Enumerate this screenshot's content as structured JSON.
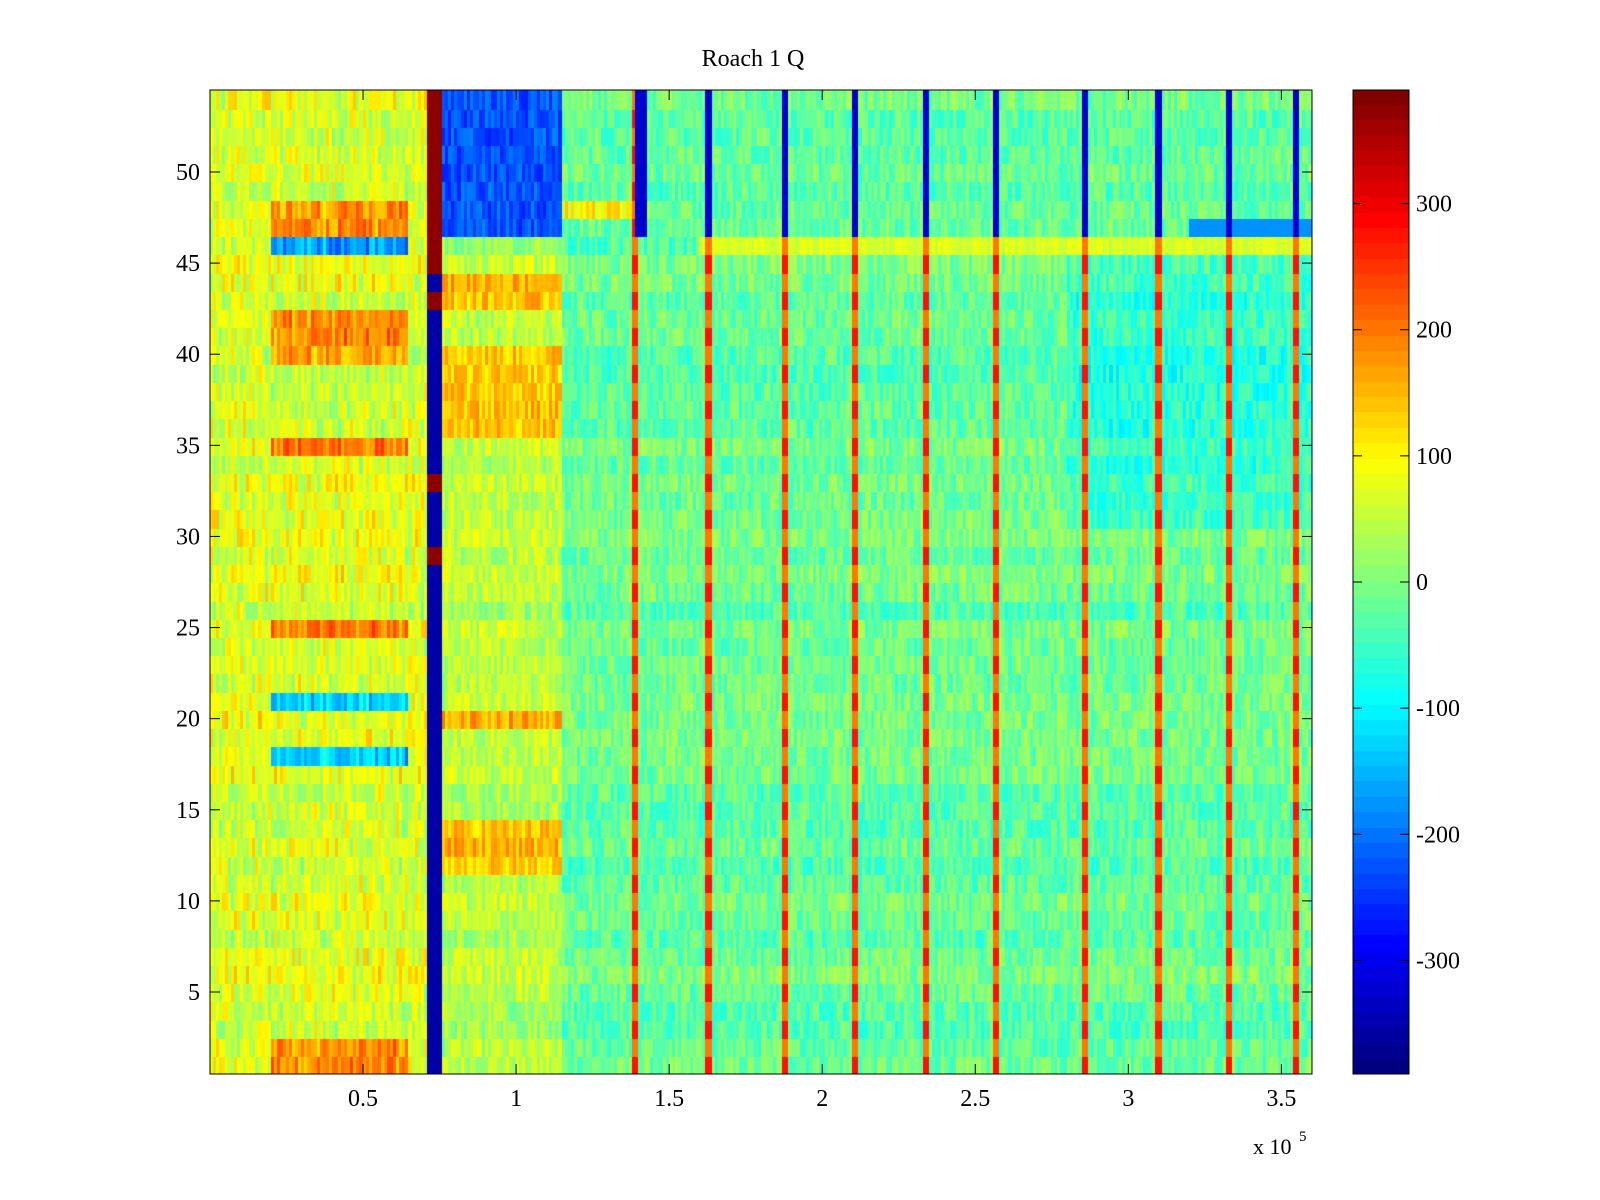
{
  "chart_data": {
    "type": "heatmap",
    "title": "Roach 1 Q",
    "xlabel": "",
    "ylabel": "",
    "x_exponent_label": {
      "base": "x 10",
      "power": "5"
    },
    "xlim": [
      0,
      3.6
    ],
    "ylim": [
      0.5,
      54.5
    ],
    "x_ticks": [
      0.5,
      1,
      1.5,
      2,
      2.5,
      3,
      3.5
    ],
    "x_tick_labels": [
      "0.5",
      "1",
      "1.5",
      "2",
      "2.5",
      "3",
      "3.5"
    ],
    "y_ticks": [
      5,
      10,
      15,
      20,
      25,
      30,
      35,
      40,
      45,
      50
    ],
    "y_tick_labels": [
      "5",
      "10",
      "15",
      "20",
      "25",
      "30",
      "35",
      "40",
      "45",
      "50"
    ],
    "colormap": "jet",
    "clim": [
      -390,
      390
    ],
    "colorbar_ticks": [
      300,
      200,
      100,
      0,
      -100,
      -200,
      -300
    ],
    "colorbar_tick_labels": [
      "300",
      "200",
      "100",
      "0",
      "-100",
      "-200",
      "-300"
    ],
    "grid": false,
    "rows": 54,
    "cols": 360,
    "description_values": {
      "background_mean": -20,
      "vertical_red_streaks_x": [
        1.39,
        1.63,
        1.88,
        2.11,
        2.34,
        2.57,
        2.86,
        3.1,
        3.33,
        3.55
      ],
      "vertical_blue_streaks_x": [
        1.4,
        1.42,
        1.63,
        1.88,
        2.11,
        2.34,
        2.57,
        2.86,
        3.1,
        3.33,
        3.55
      ],
      "dark_band_x": [
        0.71,
        0.76
      ]
    }
  }
}
